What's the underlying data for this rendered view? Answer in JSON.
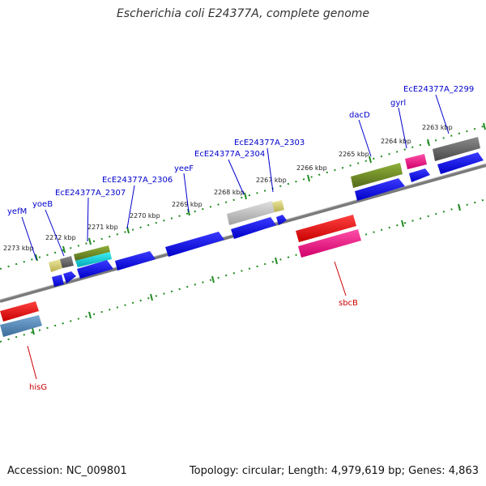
{
  "title": "Escherichia coli E24377A, complete genome",
  "footer": {
    "accession": "Accession: NC_009801",
    "summary": "Topology: circular; Length: 4,979,619 bp; Genes: 4,863"
  },
  "scale_labels": [
    "2273 kbp",
    "2272 kbp",
    "2271 kbp",
    "2270 kbp",
    "2269 kbp",
    "2268 kbp",
    "2267 kbp",
    "2266 kbp",
    "2265 kbp",
    "2264 kbp",
    "2263 kbp"
  ],
  "gene_labels_top": [
    "yefM",
    "yoeB",
    "EcE24377A_2307",
    "EcE24377A_2306",
    "yeeF",
    "EcE24377A_2304",
    "EcE24377A_2303",
    "dacD",
    "gyrl",
    "EcE24377A_2299"
  ],
  "gene_labels_bottom": [
    "hisG",
    "sbcB"
  ],
  "colors": {
    "label_top": "#0000cc",
    "label_bottom": "#cc0000",
    "backbone": "#808080",
    "tick": "#228b22",
    "cds_blue": "#0000ff",
    "red": "#ff0000",
    "pink": "#ff1493",
    "olive": "#6b8e23",
    "grey": "#696969",
    "light_grey": "#c0c0c0",
    "khaki": "#d6cf7a",
    "cyan": "#00cccc",
    "steel": "#4682b4"
  }
}
